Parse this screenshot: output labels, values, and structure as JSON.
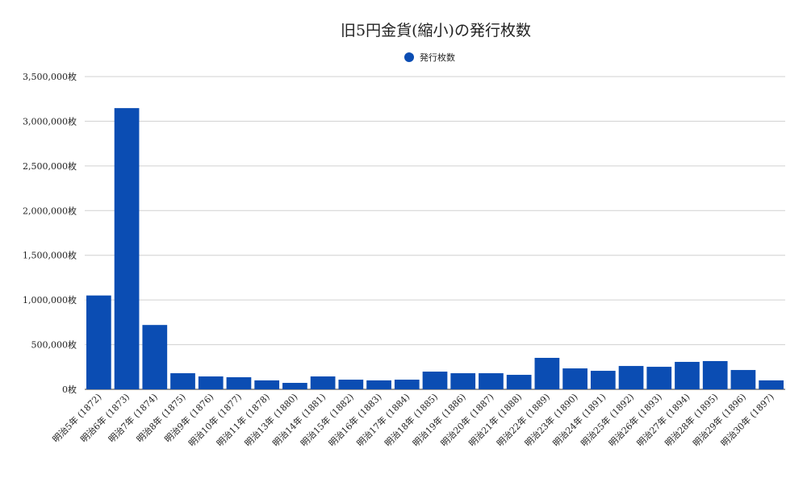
{
  "chart_data": {
    "type": "bar",
    "title": "旧5円金貨(縮小)の発行枚数",
    "legend": {
      "position": "top",
      "entries": [
        "発行枚数"
      ]
    },
    "grid": true,
    "ylim": [
      0,
      3500000
    ],
    "yticks": [
      "0枚",
      "500,000枚",
      "1,000,000枚",
      "1,500,000枚",
      "2,000,000枚",
      "2,500,000枚",
      "3,000,000枚",
      "3,500,000枚"
    ],
    "ytick_values": [
      0,
      500000,
      1000000,
      1500000,
      2000000,
      2500000,
      3000000,
      3500000
    ],
    "categories": [
      "明治5年 (1872)",
      "明治6年 (1873)",
      "明治7年 (1874)",
      "明治8年 (1875)",
      "明治9年 (1876)",
      "明治10年 (1877)",
      "明治11年 (1878)",
      "明治13年 (1880)",
      "明治14年 (1881)",
      "明治15年 (1882)",
      "明治16年 (1883)",
      "明治17年 (1884)",
      "明治18年 (1885)",
      "明治19年 (1886)",
      "明治20年 (1887)",
      "明治21年 (1888)",
      "明治22年 (1889)",
      "明治23年 (1890)",
      "明治24年 (1891)",
      "明治25年 (1892)",
      "明治26年 (1893)",
      "明治27年 (1894)",
      "明治28年 (1895)",
      "明治29年 (1896)",
      "明治30年 (1897)"
    ],
    "series": [
      {
        "name": "発行枚数",
        "color": "#0b4db3",
        "values": [
          1050000,
          3147000,
          720000,
          180000,
          144000,
          135000,
          100000,
          72000,
          144000,
          108000,
          100000,
          108000,
          198000,
          180000,
          180000,
          162000,
          352000,
          234000,
          207000,
          261000,
          252000,
          307000,
          316000,
          216000,
          100000
        ]
      }
    ]
  }
}
